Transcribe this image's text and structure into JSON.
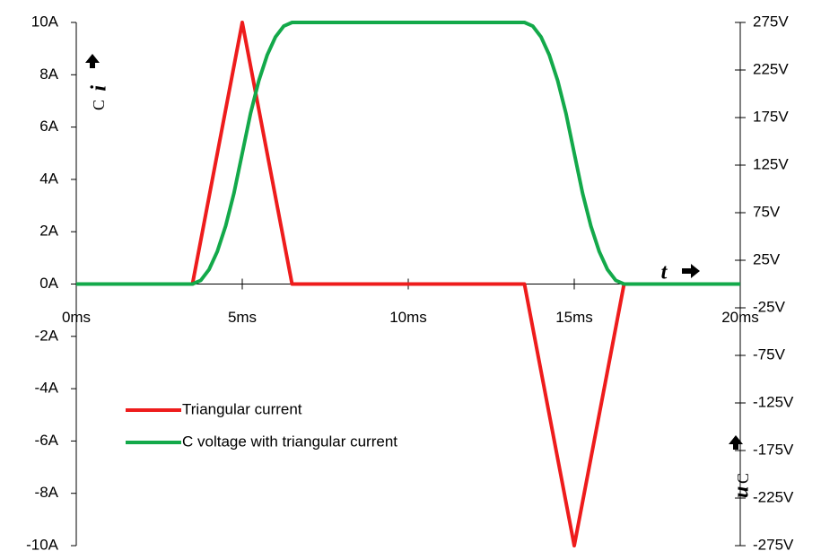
{
  "chart_data": {
    "type": "line",
    "series": [
      {
        "name": "Triangular current",
        "color": "#ee1c1c",
        "x": [
          0,
          3.5,
          5,
          6.5,
          13.5,
          15,
          16.5,
          20
        ],
        "values": [
          0,
          0,
          10,
          0,
          0,
          -10,
          0,
          0
        ]
      },
      {
        "name": "C voltage with triangular current",
        "color": "#13a94a",
        "axis": "y2",
        "x": [
          0,
          3.5,
          3.75,
          4,
          4.25,
          4.5,
          4.75,
          5,
          5.25,
          5.5,
          5.75,
          6,
          6.25,
          6.5,
          13.5,
          13.75,
          14,
          14.25,
          14.5,
          14.75,
          15,
          15.25,
          15.5,
          15.75,
          16,
          16.25,
          16.5,
          20
        ],
        "values": [
          0,
          0,
          3.8,
          15.3,
          34.4,
          61.1,
          95.5,
          137.5,
          179.5,
          213.9,
          240.6,
          259.7,
          271.2,
          275,
          275,
          271.2,
          259.7,
          240.6,
          213.9,
          179.5,
          137.5,
          95.5,
          61.1,
          34.4,
          15.3,
          3.8,
          0,
          0
        ]
      }
    ],
    "xlim": [
      0,
      20
    ],
    "xticks": [
      {
        "value": 0,
        "label": "0ms"
      },
      {
        "value": 5,
        "label": "5ms"
      },
      {
        "value": 10,
        "label": "10ms"
      },
      {
        "value": 15,
        "label": "15ms"
      },
      {
        "value": 20,
        "label": "20ms"
      }
    ],
    "ylim": [
      -10,
      10
    ],
    "yticks": [
      {
        "value": 10,
        "label": "10A"
      },
      {
        "value": 8,
        "label": "8A"
      },
      {
        "value": 6,
        "label": "6A"
      },
      {
        "value": 4,
        "label": "4A"
      },
      {
        "value": 2,
        "label": "2A"
      },
      {
        "value": 0,
        "label": "0A"
      },
      {
        "value": -2,
        "label": "-2A"
      },
      {
        "value": -4,
        "label": "-4A"
      },
      {
        "value": -6,
        "label": "-6A"
      },
      {
        "value": -8,
        "label": "-8A"
      },
      {
        "value": -10,
        "label": "-10A"
      }
    ],
    "y2lim": [
      -275,
      275
    ],
    "y2ticks": [
      {
        "value": 275,
        "label": "275V"
      },
      {
        "value": 225,
        "label": "225V"
      },
      {
        "value": 175,
        "label": "175V"
      },
      {
        "value": 125,
        "label": "125V"
      },
      {
        "value": 75,
        "label": "75V"
      },
      {
        "value": 25,
        "label": "25V"
      },
      {
        "value": -25,
        "label": "-25V"
      },
      {
        "value": -75,
        "label": "-75V"
      },
      {
        "value": -125,
        "label": "-125V"
      },
      {
        "value": -175,
        "label": "-175V"
      },
      {
        "value": -225,
        "label": "-225V"
      },
      {
        "value": -275,
        "label": "-275V"
      }
    ],
    "ylabel": {
      "main": "i",
      "sub": "C"
    },
    "y2label": {
      "main": "u",
      "sub": "C"
    },
    "xlabel": "t"
  }
}
